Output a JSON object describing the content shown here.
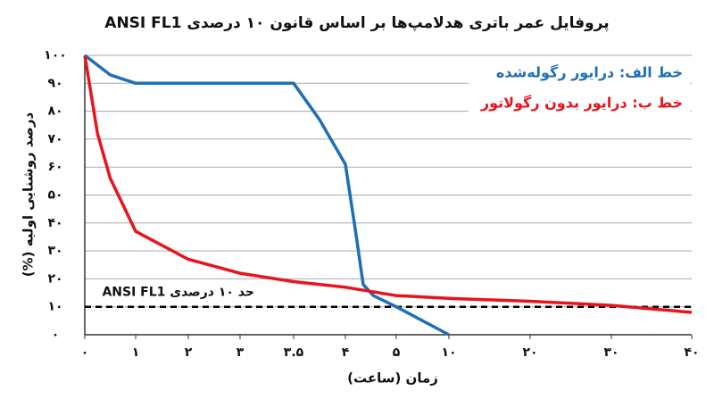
{
  "chart_data": {
    "type": "line",
    "title": "پروفایل عمر باتری هدلامپ‌ها بر اساس قانون ۱۰ درصدی ANSI FL1",
    "xlabel": "زمان (ساعت)",
    "ylabel": "درصد روشنایی اولیه (%)",
    "xlim": [
      0,
      40
    ],
    "xticks": [
      {
        "value": 0,
        "label": "۰"
      },
      {
        "value": 1,
        "label": "۱"
      },
      {
        "value": 2,
        "label": "۲"
      },
      {
        "value": 3,
        "label": "۳"
      },
      {
        "value": 3.5,
        "label": "۳.۵"
      },
      {
        "value": 4,
        "label": "۴"
      },
      {
        "value": 5,
        "label": "۵"
      },
      {
        "value": 10,
        "label": "۱۰"
      },
      {
        "value": 20,
        "label": "۲۰"
      },
      {
        "value": 30,
        "label": "۳۰"
      },
      {
        "value": 40,
        "label": "۴۰"
      }
    ],
    "ylim": [
      0,
      100
    ],
    "yticks": [
      {
        "value": 0,
        "label": "۰"
      },
      {
        "value": 10,
        "label": "۱۰"
      },
      {
        "value": 20,
        "label": "۲۰"
      },
      {
        "value": 30,
        "label": "۳۰"
      },
      {
        "value": 40,
        "label": "۴۰"
      },
      {
        "value": 50,
        "label": "۵۰"
      },
      {
        "value": 60,
        "label": "۶۰"
      },
      {
        "value": 70,
        "label": "۷۰"
      },
      {
        "value": 80,
        "label": "۸۰"
      },
      {
        "value": 90,
        "label": "۹۰"
      },
      {
        "value": 100,
        "label": "۱۰۰"
      }
    ],
    "grid": true,
    "legend": "top-right",
    "series": [
      {
        "name": "خط الف: درایور رگوله‌شده",
        "color": "#1f6fb5",
        "x": [
          0,
          0.5,
          1,
          3.5,
          3.75,
          4,
          4.2,
          4.35,
          4.55,
          5,
          10
        ],
        "values": [
          100,
          93,
          90,
          90,
          77,
          61,
          37,
          18,
          14,
          10,
          0
        ]
      },
      {
        "name": "خط ب: درایور بدون رگولاتور",
        "color": "#e8141b",
        "x": [
          0,
          0.25,
          0.5,
          1,
          2,
          3,
          3.5,
          4,
          5,
          10,
          20,
          30,
          40
        ],
        "values": [
          100,
          72,
          56,
          37,
          27,
          22,
          19,
          17,
          14,
          13,
          12,
          10.5,
          8
        ]
      }
    ],
    "threshold": {
      "value": 10,
      "label": "حد ۱۰ درصدی ANSI FL1"
    }
  }
}
